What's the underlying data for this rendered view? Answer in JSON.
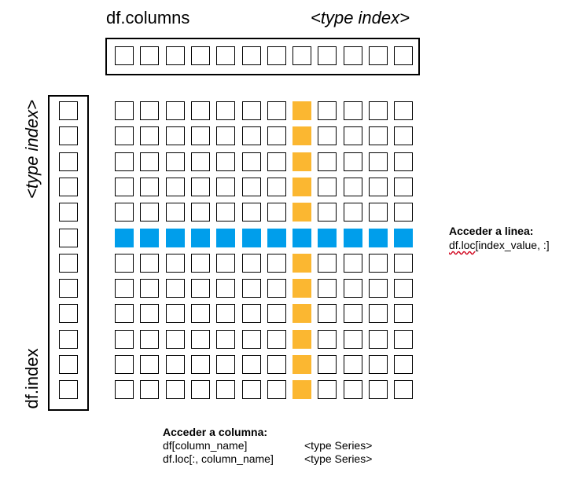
{
  "columns_label": "df.columns",
  "columns_type": "<type index>",
  "index_label": "df.index",
  "index_type": "<type index>",
  "grid": {
    "rows": 12,
    "cols": 12,
    "highlight_row": 5,
    "highlight_col": 7
  },
  "colors": {
    "column_highlight": "#fbb731",
    "row_highlight": "#009eeb"
  },
  "row_access": {
    "title": "Acceder a linea:",
    "code_prefix": "df.loc",
    "code_suffix": "[index_value, :]"
  },
  "column_access": {
    "title": "Acceder a columna:",
    "lines": [
      {
        "code": "df[column_name]",
        "type": "<type Series>"
      },
      {
        "code": "df.loc[:, column_name]",
        "type": "<type Series>"
      }
    ]
  }
}
